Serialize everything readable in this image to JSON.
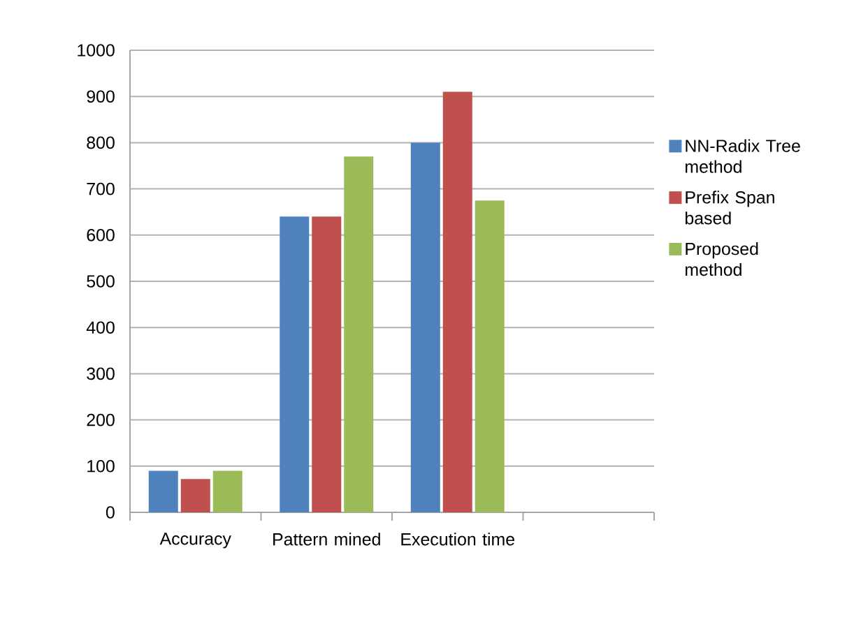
{
  "chart_data": {
    "type": "bar",
    "categories": [
      "Accuracy",
      "Pattern mined",
      "Execution time",
      null
    ],
    "series": [
      {
        "name": "NN-Radix Tree method",
        "color": "#4f81bd",
        "values": [
          90,
          640,
          800,
          null
        ]
      },
      {
        "name": "Prefix Span based",
        "color": "#c0504d",
        "values": [
          72,
          640,
          910,
          null
        ]
      },
      {
        "name": "Proposed method",
        "color": "#9bbb59",
        "values": [
          90,
          770,
          675,
          null
        ]
      }
    ],
    "ylim": [
      0,
      1000
    ],
    "yticks": [
      0,
      100,
      200,
      300,
      400,
      500,
      600,
      700,
      800,
      900,
      1000
    ],
    "grid": "y",
    "legend": "right"
  }
}
